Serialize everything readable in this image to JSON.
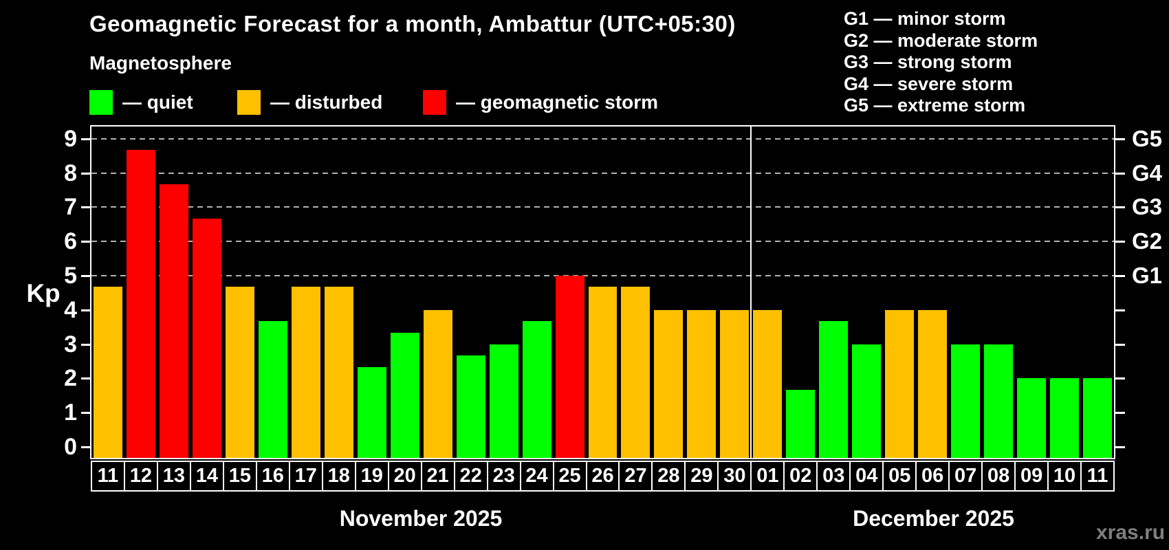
{
  "header": {
    "title": "Geomagnetic Forecast for a month, Ambattur (UTC+05:30)",
    "subtitle": "Magnetosphere",
    "legend": [
      {
        "key": "quiet",
        "label": "— quiet",
        "color": "#00ff00"
      },
      {
        "key": "disturbed",
        "label": "— disturbed",
        "color": "#ffc000"
      },
      {
        "key": "storm",
        "label": "— geomagnetic storm",
        "color": "#ff0000"
      }
    ],
    "g_scale_legend": [
      "G1 — minor storm",
      "G2 — moderate storm",
      "G3 — strong storm",
      "G4 — severe storm",
      "G5 — extreme storm"
    ]
  },
  "chart_data": {
    "type": "bar",
    "title": "Geomagnetic Forecast for a month, Ambattur (UTC+05:30)",
    "ylabel": "Kp",
    "ylim": [
      -0.4,
      9.4
    ],
    "y_ticks": [
      0,
      1,
      2,
      3,
      4,
      5,
      6,
      7,
      8,
      9
    ],
    "grid": "dashed horizontal lines at Kp 5 to 9",
    "right_axis_labels": [
      {
        "label": "G1",
        "kp": 5
      },
      {
        "label": "G2",
        "kp": 6
      },
      {
        "label": "G3",
        "kp": 7
      },
      {
        "label": "G4",
        "kp": 8
      },
      {
        "label": "G5",
        "kp": 9
      }
    ],
    "color_map": {
      "quiet": "#00ff00",
      "disturbed": "#ffc000",
      "storm": "#ff0000"
    },
    "month_groups": [
      {
        "label": "November 2025",
        "count": 20
      },
      {
        "label": "December 2025",
        "count": 11
      }
    ],
    "bars": [
      {
        "day": "11",
        "month": 0,
        "kp": 4.67,
        "status": "disturbed"
      },
      {
        "day": "12",
        "month": 0,
        "kp": 8.67,
        "status": "storm"
      },
      {
        "day": "13",
        "month": 0,
        "kp": 7.67,
        "status": "storm"
      },
      {
        "day": "14",
        "month": 0,
        "kp": 6.67,
        "status": "storm"
      },
      {
        "day": "15",
        "month": 0,
        "kp": 4.67,
        "status": "disturbed"
      },
      {
        "day": "16",
        "month": 0,
        "kp": 3.67,
        "status": "quiet"
      },
      {
        "day": "17",
        "month": 0,
        "kp": 4.67,
        "status": "disturbed"
      },
      {
        "day": "18",
        "month": 0,
        "kp": 4.67,
        "status": "disturbed"
      },
      {
        "day": "19",
        "month": 0,
        "kp": 2.33,
        "status": "quiet"
      },
      {
        "day": "20",
        "month": 0,
        "kp": 3.33,
        "status": "quiet"
      },
      {
        "day": "21",
        "month": 0,
        "kp": 4.0,
        "status": "disturbed"
      },
      {
        "day": "22",
        "month": 0,
        "kp": 2.67,
        "status": "quiet"
      },
      {
        "day": "23",
        "month": 0,
        "kp": 3.0,
        "status": "quiet"
      },
      {
        "day": "24",
        "month": 0,
        "kp": 3.67,
        "status": "quiet"
      },
      {
        "day": "25",
        "month": 0,
        "kp": 5.0,
        "status": "storm"
      },
      {
        "day": "26",
        "month": 0,
        "kp": 4.67,
        "status": "disturbed"
      },
      {
        "day": "27",
        "month": 0,
        "kp": 4.67,
        "status": "disturbed"
      },
      {
        "day": "28",
        "month": 0,
        "kp": 4.0,
        "status": "disturbed"
      },
      {
        "day": "29",
        "month": 0,
        "kp": 4.0,
        "status": "disturbed"
      },
      {
        "day": "30",
        "month": 0,
        "kp": 4.0,
        "status": "disturbed"
      },
      {
        "day": "01",
        "month": 1,
        "kp": 4.0,
        "status": "disturbed"
      },
      {
        "day": "02",
        "month": 1,
        "kp": 1.67,
        "status": "quiet"
      },
      {
        "day": "03",
        "month": 1,
        "kp": 3.67,
        "status": "quiet"
      },
      {
        "day": "04",
        "month": 1,
        "kp": 3.0,
        "status": "quiet"
      },
      {
        "day": "05",
        "month": 1,
        "kp": 4.0,
        "status": "disturbed"
      },
      {
        "day": "06",
        "month": 1,
        "kp": 4.0,
        "status": "disturbed"
      },
      {
        "day": "07",
        "month": 1,
        "kp": 3.0,
        "status": "quiet"
      },
      {
        "day": "08",
        "month": 1,
        "kp": 3.0,
        "status": "quiet"
      },
      {
        "day": "09",
        "month": 1,
        "kp": 2.0,
        "status": "quiet"
      },
      {
        "day": "10",
        "month": 1,
        "kp": 2.0,
        "status": "quiet"
      },
      {
        "day": "11",
        "month": 1,
        "kp": 2.0,
        "status": "quiet"
      }
    ]
  },
  "footer": {
    "watermark": "xras.ru"
  }
}
